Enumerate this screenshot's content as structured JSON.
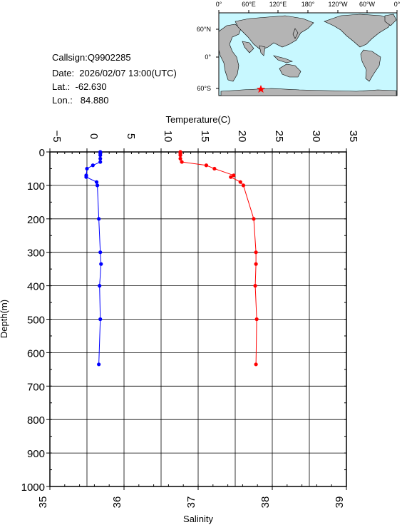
{
  "meta": {
    "callsign": "Callsign:Q9902285",
    "date": "Date:  2026/02/07 13:00(UTC)",
    "lat": "Lat.:  -62.630",
    "lon": "Lon.:   84.880"
  },
  "map": {
    "top_labels": [
      "0°",
      "60°E",
      "120°E",
      "180°",
      "120°W",
      "60°W",
      "0°"
    ],
    "lat_labels": [
      "60°N",
      "0°",
      "60°S"
    ],
    "ocean_color": "#c8f8ff",
    "land_color": "#b4b4b4",
    "marker_icon": "star-icon",
    "marker_color": "#ff0000"
  },
  "chart_data": {
    "type": "line",
    "title": "",
    "temperature_axis": {
      "label": "Temperature(C)",
      "range": [
        -5,
        35
      ],
      "ticks": [
        -5,
        0,
        5,
        10,
        15,
        20,
        25,
        30,
        35
      ],
      "tick_labels": [
        "−5",
        "0",
        "5",
        "10",
        "15",
        "20",
        "25",
        "30",
        "35"
      ]
    },
    "salinity_axis": {
      "label": "Salinity",
      "range": [
        35,
        39
      ],
      "ticks": [
        35,
        36,
        37,
        38,
        39
      ],
      "tick_labels": [
        "35",
        "36",
        "37",
        "38",
        "39"
      ]
    },
    "depth_axis": {
      "label": "Depth(m)",
      "range": [
        0,
        1000
      ],
      "reversed": true,
      "ticks": [
        0,
        100,
        200,
        300,
        400,
        500,
        600,
        700,
        800,
        900,
        1000
      ],
      "tick_labels": [
        "0",
        "100",
        "200",
        "300",
        "400",
        "500",
        "600",
        "700",
        "800",
        "900",
        "1000"
      ]
    },
    "grid": true,
    "series": [
      {
        "color": "#0000ff",
        "axis": "temperature",
        "depth": [
          0,
          5,
          10,
          20,
          30,
          40,
          50,
          70,
          75,
          90,
          100,
          200,
          300,
          335,
          400,
          500,
          635
        ],
        "values": [
          1.8,
          1.8,
          1.8,
          1.8,
          1.8,
          0.8,
          0.0,
          -0.1,
          -0.1,
          1.3,
          1.4,
          1.6,
          1.8,
          1.9,
          1.7,
          1.8,
          1.6
        ]
      },
      {
        "color": "#ff0000",
        "axis": "temperature",
        "depth": [
          0,
          5,
          10,
          20,
          30,
          40,
          50,
          70,
          75,
          90,
          100,
          200,
          300,
          335,
          400,
          500,
          635
        ],
        "values": [
          12.6,
          12.6,
          12.6,
          12.6,
          12.8,
          16.1,
          17.2,
          19.8,
          19.4,
          20.7,
          21.1,
          22.5,
          22.8,
          22.8,
          22.7,
          22.9,
          22.8
        ]
      }
    ]
  }
}
